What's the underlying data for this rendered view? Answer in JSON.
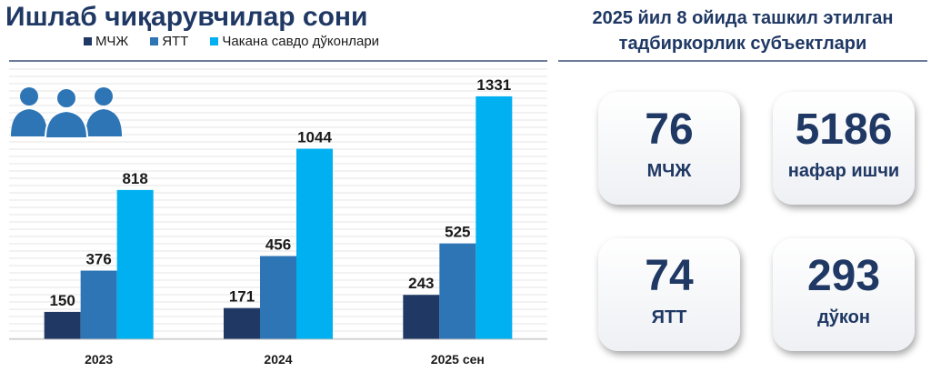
{
  "left_title": "Ишлаб чиқарувчилар сони",
  "right_title": {
    "line1": "2025 йил 8 ойида ташкил этилган",
    "line2": "тадбиркорлик субъектлари"
  },
  "chart_data": {
    "type": "bar",
    "title": "Ишлаб чиқарувчилар сони",
    "categories": [
      "2023",
      "2024",
      "2025 сен"
    ],
    "series": [
      {
        "name": "МЧЖ",
        "color": "#1f3864",
        "values": [
          150,
          171,
          243
        ]
      },
      {
        "name": "ЯТТ",
        "color": "#2e75b6",
        "values": [
          376,
          456,
          525
        ]
      },
      {
        "name": "Чакана савдо дўконлари",
        "color": "#00b0f0",
        "values": [
          818,
          1044,
          1331
        ]
      }
    ],
    "ylim": [
      0,
      1500
    ],
    "grid": true,
    "legend_position": "top"
  },
  "cards": [
    {
      "value": "76",
      "label": "МЧЖ"
    },
    {
      "value": "5186",
      "label": "нафар ишчи"
    },
    {
      "value": "74",
      "label": "ЯТТ"
    },
    {
      "value": "293",
      "label": "дўкон"
    }
  ],
  "icons": {
    "people": "people-group-icon"
  }
}
